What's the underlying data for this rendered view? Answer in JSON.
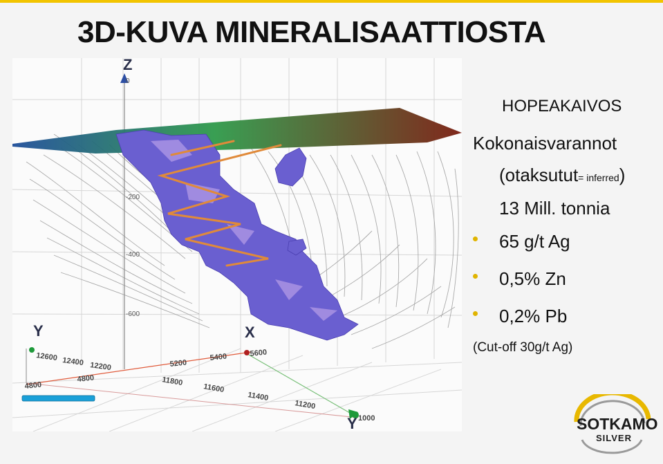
{
  "slide": {
    "title": "3D-KUVA MINERALISAATTIOSTA"
  },
  "figure": {
    "axis_labels": {
      "z": "Z",
      "y_left": "Y",
      "x": "X",
      "y_bottom": "Y"
    },
    "z_ticks": [
      "0",
      "-200",
      "-400",
      "-600"
    ],
    "back_ticks": [
      "12600",
      "12400",
      "12200",
      "5200",
      "5400",
      "5600"
    ],
    "front_ticks": [
      "4800",
      "4800",
      "11800",
      "11600",
      "11400",
      "11200",
      "1000"
    ],
    "colors": {
      "surface_left": "#1f4e9a",
      "surface_mid": "#2f9a4a",
      "surface_right": "#7a1d10",
      "ore_body": "#6a5fd0",
      "drill_traces": "#e08a3a",
      "scale_bar": "#1aa0d8"
    }
  },
  "info": {
    "mine_name": "HOPEAKAIVOS",
    "reserves_title": "Kokonaisvarannot",
    "estimate_open": "(otaksutut",
    "estimate_small": "= inferred",
    "estimate_close": ")",
    "tonnage": "13 Mill. tonnia",
    "grades": [
      "65 g/t Ag",
      "0,5% Zn",
      "0,2% Pb"
    ],
    "cutoff": "(Cut-off 30g/t Ag)"
  },
  "logo": {
    "name": "SOTKAMO",
    "sub": "SILVER",
    "ring_colors": [
      "#e8b800",
      "#9a9a9a"
    ]
  }
}
